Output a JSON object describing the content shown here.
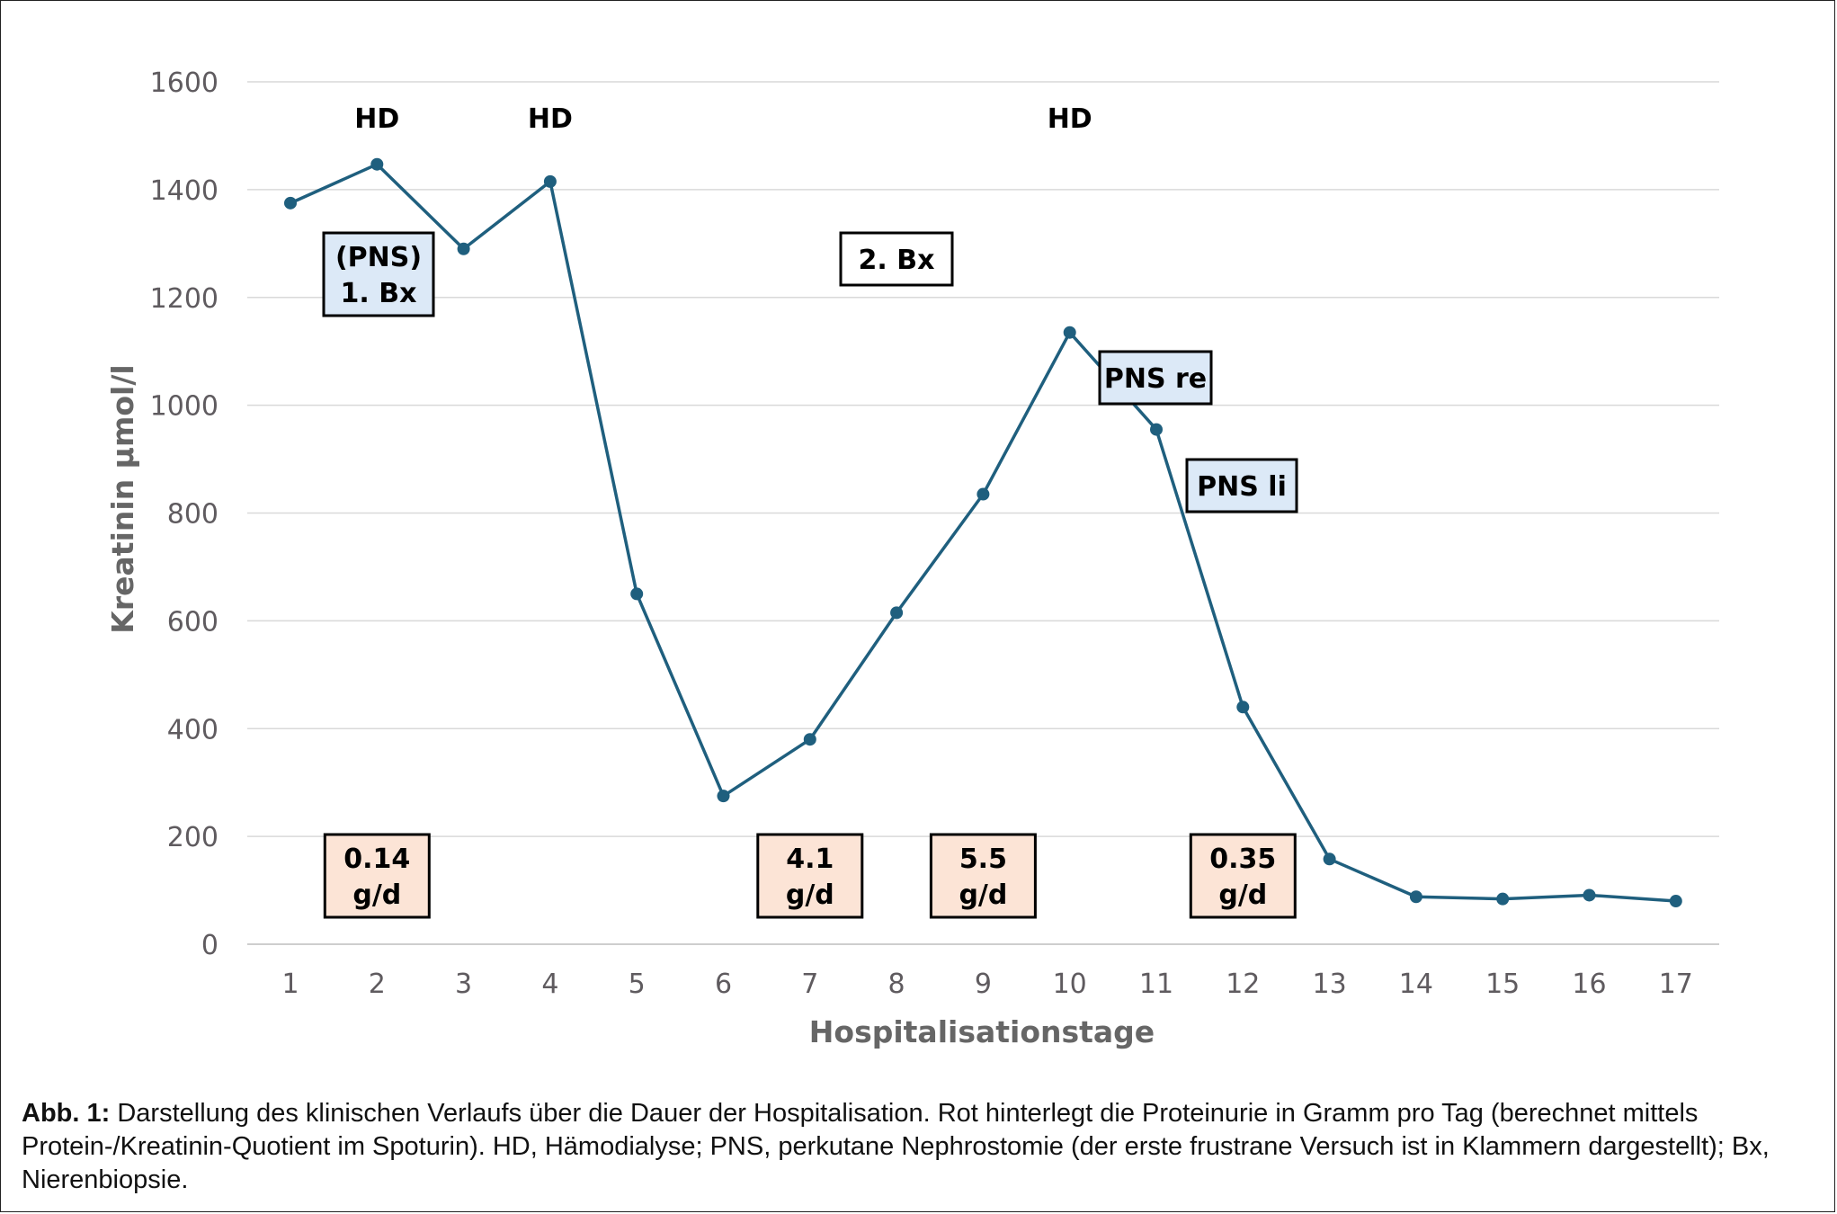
{
  "chart_data": {
    "type": "line",
    "title": "",
    "xlabel": "Hospitalisationstage",
    "ylabel": "Kreatinin µmol/l",
    "ylim": [
      0,
      1600
    ],
    "yticks": [
      0,
      200,
      400,
      600,
      800,
      1000,
      1200,
      1400,
      1600
    ],
    "grid": true,
    "line_color": "#1f5f7e",
    "x": [
      1,
      2,
      3,
      4,
      5,
      6,
      7,
      8,
      9,
      10,
      11,
      12,
      13,
      14,
      15,
      16,
      17
    ],
    "values": [
      1375,
      1447,
      1290,
      1415,
      650,
      275,
      380,
      615,
      835,
      1135,
      955,
      440,
      158,
      88,
      84,
      91,
      80
    ],
    "annotations": {
      "hd": [
        {
          "day": 2,
          "text": "HD"
        },
        {
          "day": 4,
          "text": "HD"
        },
        {
          "day": 10,
          "text": "HD"
        }
      ],
      "procedures": [
        {
          "lines": [
            "(PNS)",
            "1. Bx"
          ],
          "fill": "#dce9f7"
        },
        {
          "lines": [
            "2. Bx"
          ],
          "fill": "#ffffff"
        },
        {
          "lines": [
            "PNS re"
          ],
          "fill": "#dce9f7"
        },
        {
          "lines": [
            "PNS li"
          ],
          "fill": "#dce9f7"
        }
      ],
      "proteinuria": [
        {
          "day": 2,
          "lines": [
            "0.14",
            "g/d"
          ]
        },
        {
          "day": 7,
          "lines": [
            "4.1",
            "g/d"
          ]
        },
        {
          "day": 9,
          "lines": [
            "5.5",
            "g/d"
          ]
        },
        {
          "day": 12,
          "lines": [
            "0.35",
            "g/d"
          ]
        }
      ],
      "proteinuria_fill": "#fce4d6"
    }
  },
  "caption": {
    "label": "Abb. 1:",
    "text": " Darstellung des klinischen Verlaufs über die Dauer der Hospitalisation. Rot hinterlegt die Proteinurie in Gramm pro Tag (berechnet mittels Protein-/Kreatinin-Quotient im Spoturin). HD, Hämodialyse; PNS, perkutane Nephrostomie (der erste frustrane Versuch ist in Klammern dargestellt); Bx, Nierenbiopsie."
  }
}
